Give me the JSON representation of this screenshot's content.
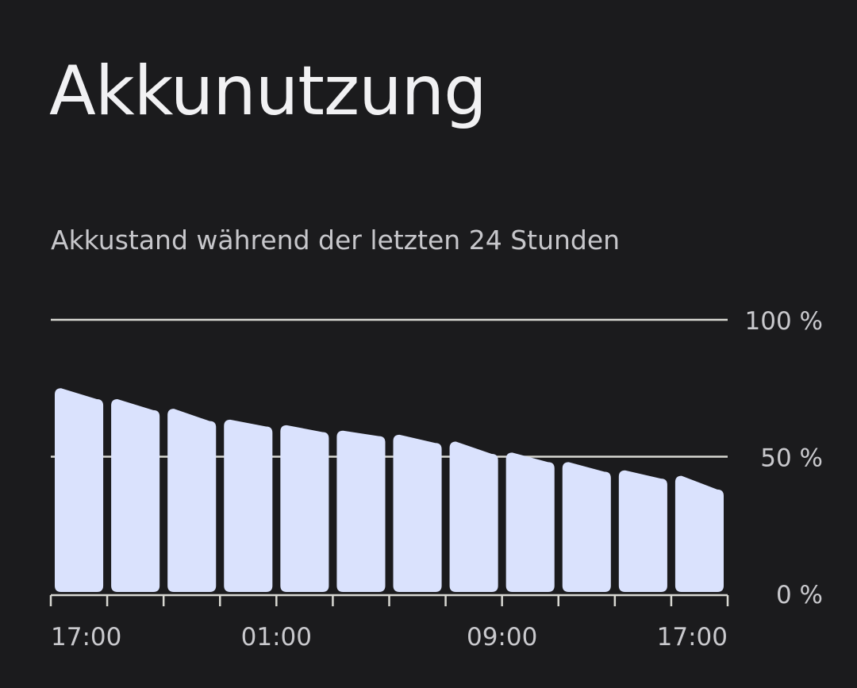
{
  "screen": {
    "title": "Akkunutzung"
  },
  "colors": {
    "background": "#1b1b1d",
    "bar": "#dae2fd",
    "grid": "#d8d8d2",
    "text": "#c9c9cd"
  },
  "chart_data": {
    "type": "bar",
    "title": "Akkunutzung",
    "subtitle": "Akkustand während der letzten 24 Stunden",
    "ylim": [
      0,
      100
    ],
    "y_ticks": [
      {
        "value": 100,
        "label": "100 %"
      },
      {
        "value": 50,
        "label": "50 %"
      },
      {
        "value": 0,
        "label": "0 %"
      }
    ],
    "y_axis_position": "right",
    "grid": true,
    "x_tick_labels": [
      {
        "slot": 0,
        "label": "17:00"
      },
      {
        "slot": 4,
        "label": "01:00"
      },
      {
        "slot": 8,
        "label": "09:00"
      },
      {
        "slot": 12,
        "label": "17:00"
      }
    ],
    "bars": [
      {
        "start": 75,
        "end": 71
      },
      {
        "start": 71,
        "end": 67
      },
      {
        "start": 67.5,
        "end": 63
      },
      {
        "start": 63.5,
        "end": 61
      },
      {
        "start": 61.5,
        "end": 59
      },
      {
        "start": 59.5,
        "end": 57.5
      },
      {
        "start": 58,
        "end": 55
      },
      {
        "start": 55.5,
        "end": 51
      },
      {
        "start": 51.5,
        "end": 48
      },
      {
        "start": 48,
        "end": 44.5
      },
      {
        "start": 45,
        "end": 42
      },
      {
        "start": 43,
        "end": 38
      }
    ]
  }
}
